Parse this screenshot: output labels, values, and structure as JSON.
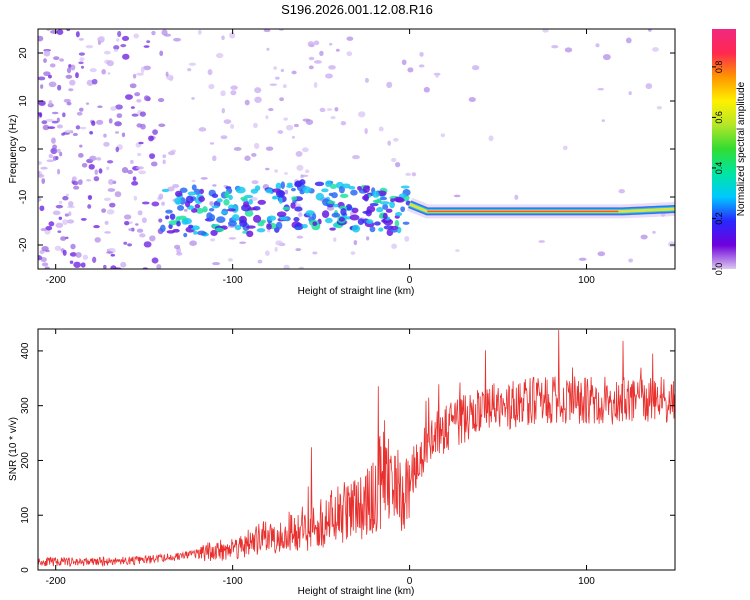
{
  "page_title": "S196.2026.001.12.08.R16",
  "colors": {
    "snr_line": "#e8302e",
    "noise_blob": "#c8aaf0",
    "signal_core": "#e0e040",
    "signal_edge": "#3a6ff0",
    "background": "#ffffff"
  },
  "chart_data": [
    {
      "type": "heatmap",
      "title": "S196.2026.001.12.08.R16",
      "xlabel": "Height of straight line (km)",
      "ylabel": "Frequency (Hz)",
      "xlim": [
        -210,
        150
      ],
      "ylim": [
        -25,
        25
      ],
      "x_ticks": [
        -200,
        -100,
        0,
        100
      ],
      "x_tick_labels": [
        "-200",
        "-100",
        "0",
        "100"
      ],
      "y_ticks": [
        -20,
        -10,
        0,
        10,
        20
      ],
      "y_tick_labels": [
        "-20",
        "-10",
        "0",
        "10",
        "20"
      ],
      "signal_track": {
        "x": [
          -140,
          -120,
          -100,
          -80,
          -60,
          -40,
          -20,
          -10,
          0,
          10,
          30,
          60,
          90,
          120,
          150
        ],
        "y": [
          -13,
          -13,
          -12.5,
          -13,
          -11.5,
          -12,
          -12.5,
          -13.5,
          -11.5,
          -13,
          -13,
          -13,
          -13,
          -13,
          -12.5
        ]
      },
      "colorbar": {
        "label": "Normalized spectral amplitude",
        "range": [
          0,
          0.95
        ],
        "ticks": [
          0.0,
          0.2,
          0.4,
          0.6,
          0.8
        ],
        "tick_labels": [
          "0.0",
          "0.2",
          "0.4",
          "0.6",
          "0.8"
        ],
        "stops": [
          "#dcc8f0",
          "#6e00dc",
          "#2828ff",
          "#00c8ff",
          "#00e6a0",
          "#32dc32",
          "#b4e628",
          "#fff000",
          "#ff9600",
          "#ff2850",
          "#f02880"
        ]
      }
    },
    {
      "type": "line",
      "title": "",
      "xlabel": "Height of straight line (km)",
      "ylabel": "SNR (10 * v/v)",
      "xlim": [
        -210,
        150
      ],
      "ylim": [
        0,
        440
      ],
      "x_ticks": [
        -200,
        -100,
        0,
        100
      ],
      "x_tick_labels": [
        "-200",
        "-100",
        "0",
        "100"
      ],
      "y_ticks": [
        0,
        100,
        200,
        300,
        400
      ],
      "y_tick_labels": [
        "0",
        "100",
        "200",
        "300",
        "400"
      ],
      "series": [
        {
          "name": "SNR",
          "x": [
            -210,
            -180,
            -150,
            -130,
            -120,
            -100,
            -80,
            -60,
            -40,
            -30,
            -20,
            -15,
            -10,
            -5,
            0,
            5,
            10,
            20,
            30,
            40,
            60,
            80,
            100,
            120,
            140,
            150
          ],
          "values": [
            15,
            15,
            18,
            25,
            30,
            40,
            60,
            75,
            100,
            115,
            130,
            180,
            160,
            140,
            170,
            200,
            235,
            255,
            275,
            290,
            305,
            310,
            310,
            310,
            310,
            310
          ]
        }
      ]
    }
  ]
}
